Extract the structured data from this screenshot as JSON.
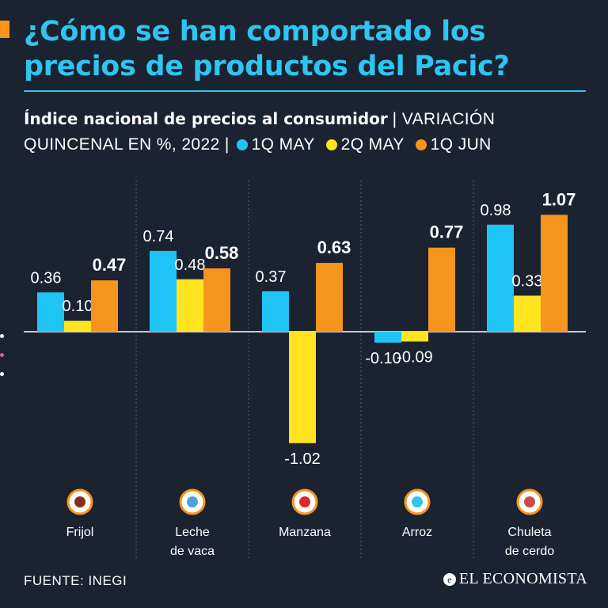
{
  "title": "¿Cómo se han comportado los precios de productos del Pacic?",
  "subtitle_bold": "Índice nacional de precios al consumidor",
  "subtitle_rest": "| VARIACIÓN QUINCENAL EN %, 2022 |",
  "source": "FUENTE: INEGI",
  "brand": "EL ECONOMISTA",
  "colors": {
    "background": "#1b2230",
    "title": "#2ec5f1",
    "series": [
      "#1ec4f4",
      "#ffe41f",
      "#f7941d"
    ]
  },
  "chart_data": {
    "type": "bar",
    "title": "Índice nacional de precios al consumidor",
    "ylabel": "VARIACIÓN QUINCENAL EN %, 2022",
    "ylim": [
      -1.1,
      1.1
    ],
    "legend_position": "top",
    "grid": false,
    "categories": [
      "Frijol",
      "Leche de vaca",
      "Manzana",
      "Arroz",
      "Chuleta de cerdo"
    ],
    "icons": [
      "beans-icon",
      "milk-carton-icon",
      "apple-icon",
      "rice-bowl-icon",
      "pork-chop-icon"
    ],
    "series": [
      {
        "name": "1Q MAY",
        "values": [
          0.36,
          0.74,
          0.37,
          -0.1,
          0.98
        ],
        "labels": [
          "0.36",
          "0.74",
          "0.37",
          "-0.10",
          "0.98"
        ]
      },
      {
        "name": "2Q MAY",
        "values": [
          0.1,
          0.48,
          -1.02,
          -0.09,
          0.33
        ],
        "labels": [
          "0.10",
          "0.48",
          "-1.02",
          "-0.09",
          "0.33"
        ]
      },
      {
        "name": "1Q JUN",
        "values": [
          0.47,
          0.58,
          0.63,
          0.77,
          1.07
        ],
        "labels": [
          "0.47",
          "0.58",
          "0.63",
          "0.77",
          "1.07"
        ]
      }
    ]
  }
}
